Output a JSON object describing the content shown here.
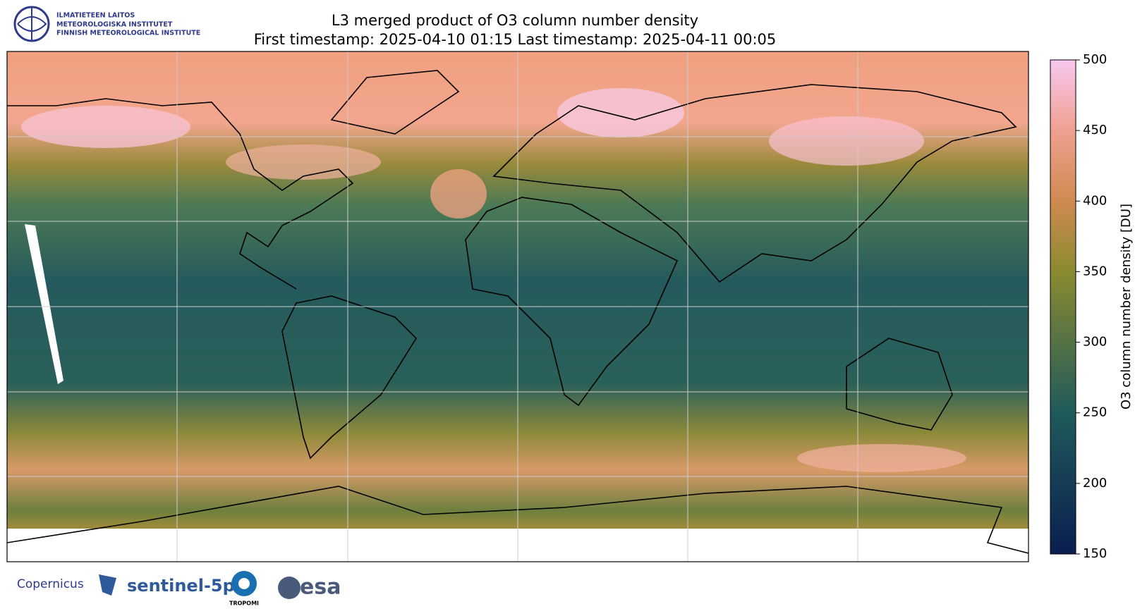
{
  "header": {
    "institute": [
      "ILMATIETEEN LAITOS",
      "METEOROLOGISKA INSTITUTET",
      "FINNISH METEOROLOGICAL INSTITUTE"
    ],
    "title": "L3 merged product of O3 column number density",
    "subtitle": "First timestamp: 2025-04-10 01:15   Last timestamp: 2025-04-11 00:05"
  },
  "colorbar": {
    "label": "O3 column number density [DU]",
    "lim": [
      150,
      500
    ],
    "ticks": [
      150,
      200,
      250,
      300,
      350,
      400,
      450,
      500
    ]
  },
  "footer": {
    "logos": [
      "Copernicus",
      "sentinel-5p",
      "TROPOMI",
      "esa"
    ]
  }
}
